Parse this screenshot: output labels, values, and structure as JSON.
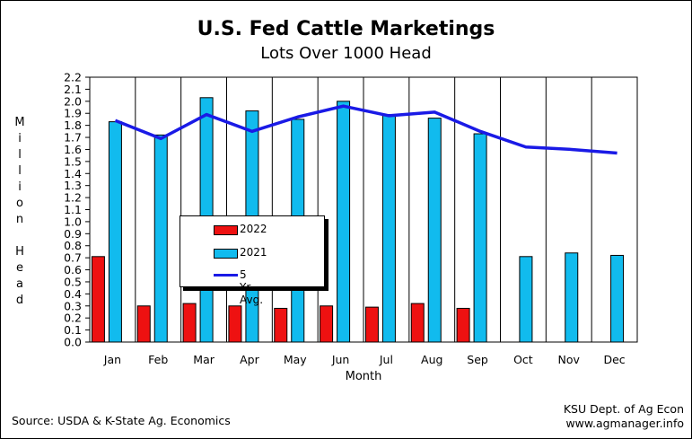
{
  "title": "U.S. Fed Cattle Marketings",
  "subtitle": "Lots Over 1000 Head",
  "source": "Source:  USDA & K-State Ag. Economics",
  "credit": {
    "line1": "KSU Dept. of Ag Econ",
    "line2": "www.agmanager.info"
  },
  "colors": {
    "s2022": "#ee1111",
    "s2021": "#11bbee",
    "avg": "#1a1ae6"
  },
  "chart_data": {
    "type": "bar",
    "xlabel": "Month",
    "ylabel": "Million Head",
    "ylabel_text": "M\ni\nl\nl\ni\no\nn\n\nH\ne\na\nd",
    "ylim": [
      0,
      2.2
    ],
    "ytick_step": 0.1,
    "grid": "vertical",
    "legend_position": "center-left",
    "categories": [
      "Jan",
      "Feb",
      "Mar",
      "Apr",
      "May",
      "Jun",
      "Jul",
      "Aug",
      "Sep",
      "Oct",
      "Nov",
      "Dec"
    ],
    "series": [
      {
        "name": "2022",
        "kind": "bar",
        "values": [
          0.71,
          0.3,
          0.32,
          0.3,
          0.28,
          0.3,
          0.29,
          0.32,
          0.28,
          null,
          null,
          null
        ]
      },
      {
        "name": "2021",
        "kind": "bar",
        "values": [
          1.83,
          1.72,
          2.03,
          1.92,
          1.85,
          2.0,
          1.89,
          1.86,
          1.73,
          0.71,
          0.74,
          0.72
        ]
      },
      {
        "name": "5 Yr. Avg.",
        "kind": "line",
        "values": [
          1.84,
          1.69,
          1.89,
          1.75,
          1.87,
          1.96,
          1.88,
          1.91,
          1.75,
          1.62,
          1.6,
          1.57
        ]
      }
    ]
  }
}
